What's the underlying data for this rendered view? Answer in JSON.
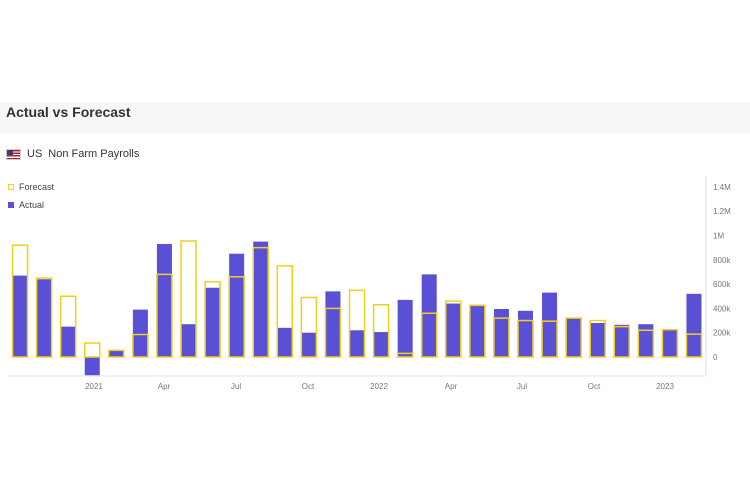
{
  "header": {
    "title": "Actual vs Forecast"
  },
  "indicator": {
    "country": "US",
    "name": "Non Farm Payrolls"
  },
  "legend": {
    "forecast": "Forecast",
    "actual": "Actual"
  },
  "colors": {
    "actual": "#5a50d6",
    "forecast": "#f1cf1e"
  },
  "chart_data": {
    "type": "bar",
    "x_tick_labels": [
      "2021",
      "Apr",
      "Jul",
      "Oct",
      "2022",
      "Apr",
      "Jul",
      "Oct",
      "2023"
    ],
    "y_tick_labels": [
      "1.4M",
      "1.2M",
      "1M",
      "800k",
      "600k",
      "400k",
      "200k",
      "0"
    ],
    "ylim": [
      -200000,
      1400000
    ],
    "y_axis_side": "right",
    "legend_position": "top-left",
    "series": [
      {
        "name": "Forecast",
        "style": "outline",
        "values": [
          920000,
          650000,
          500000,
          115000,
          55000,
          185000,
          680000,
          955000,
          620000,
          660000,
          900000,
          750000,
          490000,
          400000,
          550000,
          430000,
          30000,
          360000,
          460000,
          425000,
          320000,
          300000,
          295000,
          320000,
          300000,
          250000,
          220000,
          225000,
          188000
        ]
      },
      {
        "name": "Actual",
        "style": "filled",
        "values": [
          670000,
          640000,
          250000,
          -150000,
          50000,
          390000,
          930000,
          270000,
          570000,
          850000,
          950000,
          240000,
          200000,
          540000,
          220000,
          205000,
          470000,
          680000,
          440000,
          430000,
          395000,
          380000,
          530000,
          320000,
          280000,
          265000,
          270000,
          225000,
          520000
        ]
      }
    ]
  }
}
